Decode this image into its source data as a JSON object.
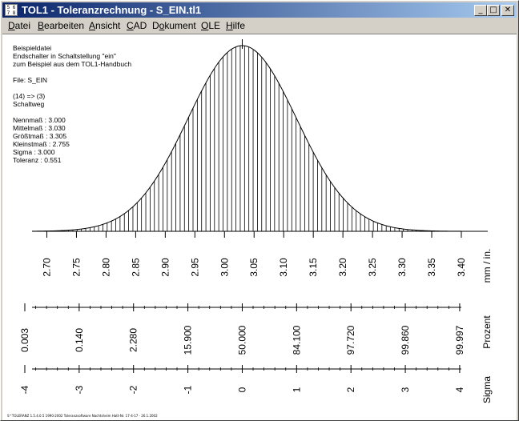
{
  "window": {
    "title": "TOL1 - Toleranzrechnung  -  S_EIN.tl1",
    "icon_text": "5 6 7 8 9",
    "buttons": {
      "minimize": "_",
      "maximize": "□",
      "close": "✕"
    }
  },
  "menubar": [
    {
      "label": "Datei",
      "accel": "D"
    },
    {
      "label": "Bearbeiten",
      "accel": "B"
    },
    {
      "label": "Ansicht",
      "accel": "A"
    },
    {
      "label": "CAD",
      "accel": "C"
    },
    {
      "label": "Dokument",
      "accel": "o"
    },
    {
      "label": "OLE",
      "accel": "O"
    },
    {
      "label": "Hilfe",
      "accel": "H"
    }
  ],
  "info_lines": [
    "Beispieldatei",
    "Endschalter in Schaltstellung \"ein\"",
    "zum Beispiel aus dem TOL1-Handbuch",
    "",
    "File: S_EIN",
    "",
    "(14) => (3)",
    "Schaltweg",
    "",
    "Nennmaß : 3.000",
    "Mittelmaß : 3.030",
    "Größtmaß : 3.305",
    "Kleinstmaß : 2.755",
    "Sigma : 3.000",
    "Toleranz : 0.551"
  ],
  "chart_data": {
    "type": "area",
    "distribution": "normal",
    "mean": 3.03,
    "sigma_mm": 0.0918,
    "xlim": [
      2.675,
      3.4
    ],
    "mm_axis": {
      "label": "mm / in.",
      "ticks": [
        "2.70",
        "2.75",
        "2.80",
        "2.85",
        "2.90",
        "2.95",
        "3.00",
        "3.05",
        "3.10",
        "3.15",
        "3.20",
        "3.25",
        "3.30",
        "3.35",
        "3.40"
      ]
    },
    "percent_axis": {
      "label": "Prozent",
      "ticks": [
        "0.003",
        "0.140",
        "2.280",
        "15.900",
        "50.000",
        "84.100",
        "97.720",
        "99.860",
        "99.997"
      ]
    },
    "sigma_axis": {
      "label": "Sigma",
      "ticks": [
        "-4",
        "-3",
        "-2",
        "-1",
        "0",
        "1",
        "2",
        "3",
        "4"
      ]
    },
    "hatch": "vertical lines under curve",
    "grid": false
  },
  "footer": "S^TOLERANZ 1.5.4.0.5  1990-2002  Toleranzsoftware  Nachtsheim  Hatt-Nr. 17-4-17 - 26.1.2002"
}
